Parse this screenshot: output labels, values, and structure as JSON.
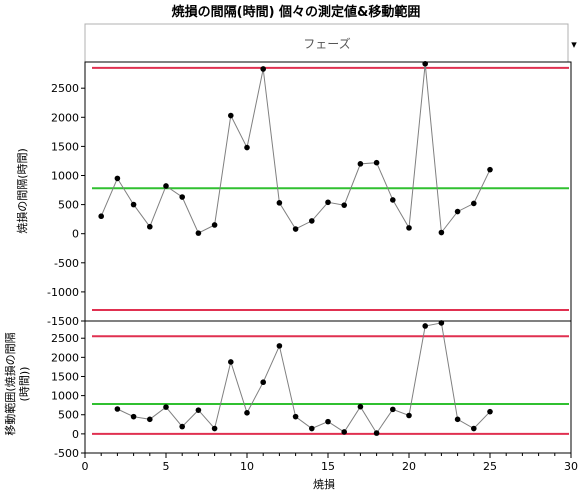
{
  "title": "焼損の間隔(時間) 個々の測定値&移動範囲",
  "phase_label": "フェーズ",
  "xlabel": "焼損",
  "colors": {
    "limit": "#e03050",
    "center": "#30c030",
    "data": "#808080",
    "point": "#000000"
  },
  "chart_data": [
    {
      "type": "line",
      "name": "individuals",
      "ylabel": "焼損の間隔(時間)",
      "ylim": [
        -1500,
        2950
      ],
      "yticks": [
        -1500,
        -1000,
        -500,
        0,
        500,
        1000,
        1500,
        2000,
        2500
      ],
      "x": [
        1,
        2,
        3,
        4,
        5,
        6,
        7,
        8,
        9,
        10,
        11,
        12,
        13,
        14,
        15,
        16,
        17,
        18,
        19,
        20,
        21,
        22,
        23,
        24,
        25
      ],
      "values": [
        300,
        950,
        500,
        120,
        820,
        630,
        10,
        150,
        2030,
        1480,
        2830,
        530,
        80,
        220,
        540,
        490,
        1200,
        1220,
        580,
        100,
        2920,
        20,
        380,
        520,
        1100
      ],
      "ucl": 2850,
      "center": 780,
      "lcl": -1310
    },
    {
      "type": "line",
      "name": "moving-range",
      "ylabel": "移動範囲(焼損の間隔(時間))",
      "ylim": [
        -500,
        2950
      ],
      "yticks": [
        -500,
        0,
        500,
        1000,
        1500,
        2000,
        2500
      ],
      "x": [
        2,
        3,
        4,
        5,
        6,
        7,
        8,
        9,
        10,
        11,
        12,
        13,
        14,
        15,
        16,
        17,
        18,
        19,
        20,
        21,
        22,
        23,
        24,
        25
      ],
      "values": [
        650,
        450,
        380,
        700,
        190,
        620,
        140,
        1880,
        550,
        1350,
        2300,
        450,
        140,
        320,
        50,
        710,
        20,
        640,
        480,
        2820,
        2900,
        380,
        140,
        580
      ],
      "ucl": 2550,
      "center": 780,
      "lcl": 0
    }
  ],
  "xaxis": {
    "xlim": [
      0,
      30
    ],
    "xticks": [
      0,
      5,
      10,
      15,
      20,
      25,
      30
    ]
  }
}
